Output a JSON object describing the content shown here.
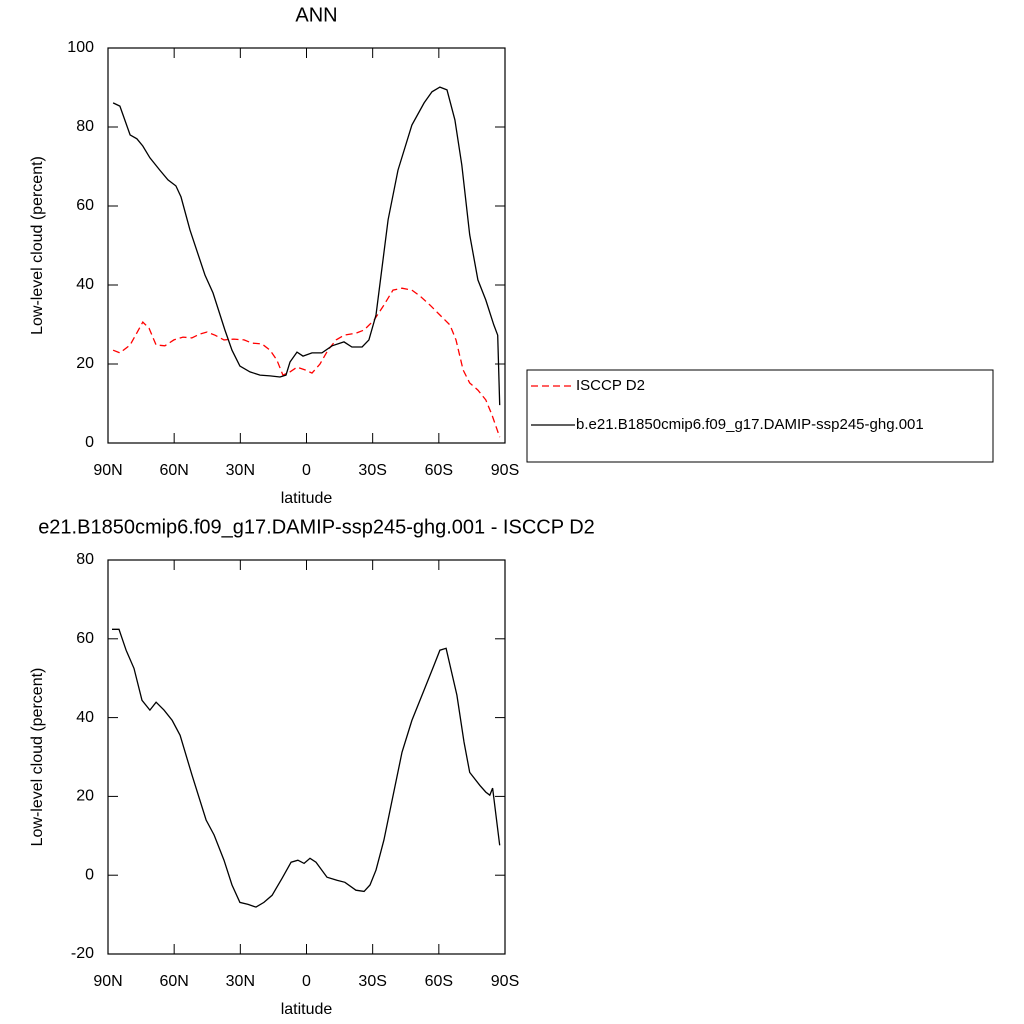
{
  "chart_data": [
    {
      "type": "line",
      "title": "ANN",
      "xlabel": "latitude",
      "ylabel": "Low-level cloud (percent)",
      "xlim": [
        90,
        -90
      ],
      "ylim": [
        0,
        100
      ],
      "xticks": [
        {
          "value": 90,
          "label": "90N"
        },
        {
          "value": 60,
          "label": "60N"
        },
        {
          "value": 30,
          "label": "30N"
        },
        0,
        {
          "value": -30,
          "label": "30S"
        },
        {
          "value": -60,
          "label": "60S"
        },
        {
          "value": -90,
          "label": "90S"
        }
      ],
      "yticks": [
        0,
        20,
        40,
        60,
        80,
        100
      ],
      "legend": "right",
      "series": [
        {
          "name": "ISCCP D2",
          "color": "#ff0000",
          "dashed": true,
          "x": [
            87.7,
            84.6,
            80,
            77,
            74.2,
            71.4,
            68.2,
            64.2,
            60.1,
            56,
            52,
            48.3,
            45.1,
            41.5,
            37.4,
            32.9,
            28.3,
            24.7,
            20.2,
            16.5,
            13.4,
            10.7,
            7.5,
            4.3,
            0.7,
            -2.5,
            -6.1,
            -9.7,
            -13.4,
            -17,
            -22.4,
            -26.1,
            -30.6,
            -35.1,
            -39.2,
            -43.3,
            -47.8,
            -51.5,
            -56,
            -60.5,
            -65,
            -67.8,
            -71,
            -74,
            -77.7,
            -81.3,
            -84.1,
            -87.6
          ],
          "values": [
            23.5,
            22.8,
            24.8,
            27.8,
            30.6,
            29.1,
            24.8,
            24.6,
            26.1,
            26.8,
            26.6,
            27.6,
            28.1,
            27.3,
            26.1,
            26.3,
            26.1,
            25.3,
            25.1,
            23.5,
            21,
            17.2,
            18,
            19.2,
            18.5,
            17.7,
            20,
            23.5,
            26.1,
            27.3,
            27.8,
            28.6,
            31.1,
            34.9,
            38.7,
            39.2,
            38.7,
            37.2,
            34.9,
            32.4,
            29.9,
            26.1,
            18.5,
            15.2,
            13.4,
            10.9,
            7.1,
            1.5
          ]
        },
        {
          "name": "b.e21.B1850cmip6.f09_g17.DAMIP-ssp245-ghg.001",
          "color": "#000000",
          "dashed": false,
          "x": [
            87.7,
            84.6,
            80,
            76.9,
            74.2,
            71,
            66.5,
            62.8,
            59.2,
            56.9,
            52.8,
            46,
            42.4,
            37,
            33.8,
            30.2,
            25.6,
            21.1,
            16.5,
            12,
            9.3,
            7.5,
            4.3,
            1.6,
            -2.5,
            -7,
            -11.6,
            -17,
            -20.6,
            -25.2,
            -28.3,
            -31.5,
            -37,
            -41.5,
            -47.8,
            -53.3,
            -56.9,
            -60.5,
            -63.7,
            -67.3,
            -70.4,
            -74,
            -77.7,
            -81.3,
            -84.9,
            -86.7,
            -87.6
          ],
          "values": [
            86.1,
            85.3,
            78,
            77,
            75.2,
            72.2,
            69.1,
            66.6,
            65.1,
            62.3,
            53.9,
            42.5,
            38,
            28.6,
            23.5,
            19.5,
            18,
            17.2,
            17,
            16.7,
            17.2,
            20.5,
            23,
            22,
            22.8,
            22.8,
            24.6,
            25.6,
            24.3,
            24.3,
            26.1,
            32.4,
            56.5,
            69.1,
            80.5,
            86.1,
            88.9,
            90.1,
            89.4,
            81.8,
            70.4,
            52.7,
            41.3,
            36.2,
            29.9,
            27.3,
            9.6
          ]
        }
      ]
    },
    {
      "type": "line",
      "title": "e21.B1850cmip6.f09_g17.DAMIP-ssp245-ghg.001 - ISCCP D2",
      "xlabel": "latitude",
      "ylabel": "Low-level cloud (percent)",
      "xlim": [
        90,
        -90
      ],
      "ylim": [
        -20,
        80
      ],
      "xticks": [
        {
          "value": 90,
          "label": "90N"
        },
        {
          "value": 60,
          "label": "60N"
        },
        {
          "value": 30,
          "label": "30N"
        },
        0,
        {
          "value": -30,
          "label": "30S"
        },
        {
          "value": -60,
          "label": "60S"
        },
        {
          "value": -90,
          "label": "90S"
        }
      ],
      "yticks": [
        -20,
        0,
        20,
        40,
        60,
        80
      ],
      "series": [
        {
          "color": "#000000",
          "dashed": false,
          "x": [
            88.2,
            85,
            81.8,
            78.2,
            74.6,
            71,
            68.2,
            64.6,
            60.9,
            57.3,
            51.9,
            45.5,
            41.9,
            37.4,
            33.8,
            30.2,
            26.5,
            22.9,
            19.3,
            15.6,
            11.1,
            7,
            3.9,
            1.1,
            -1.6,
            -4.3,
            -9.3,
            -13.8,
            -17.4,
            -22.4,
            -26.1,
            -28.8,
            -31.5,
            -35.1,
            -38.8,
            -43.3,
            -47.8,
            -53.3,
            -57.8,
            -60.5,
            -63.3,
            -68.2,
            -71.4,
            -74,
            -78.6,
            -81.3,
            -83.1,
            -84.4,
            -87.6
          ],
          "values": [
            62.4,
            62.4,
            57.1,
            52.5,
            44.4,
            41.9,
            43.9,
            41.9,
            39.3,
            35.5,
            25.4,
            14,
            10.2,
            3.8,
            -2.5,
            -6.9,
            -7.4,
            -8.1,
            -6.9,
            -5.1,
            -0.8,
            3.3,
            3.8,
            3,
            4.3,
            3.3,
            -0.5,
            -1.3,
            -1.8,
            -3.8,
            -4.1,
            -2.5,
            1.3,
            8.9,
            19,
            31.2,
            39.3,
            47,
            53.3,
            57.1,
            57.6,
            45.7,
            33.8,
            26.1,
            22.8,
            21.1,
            20.3,
            22.1,
            7.6
          ]
        }
      ]
    }
  ]
}
